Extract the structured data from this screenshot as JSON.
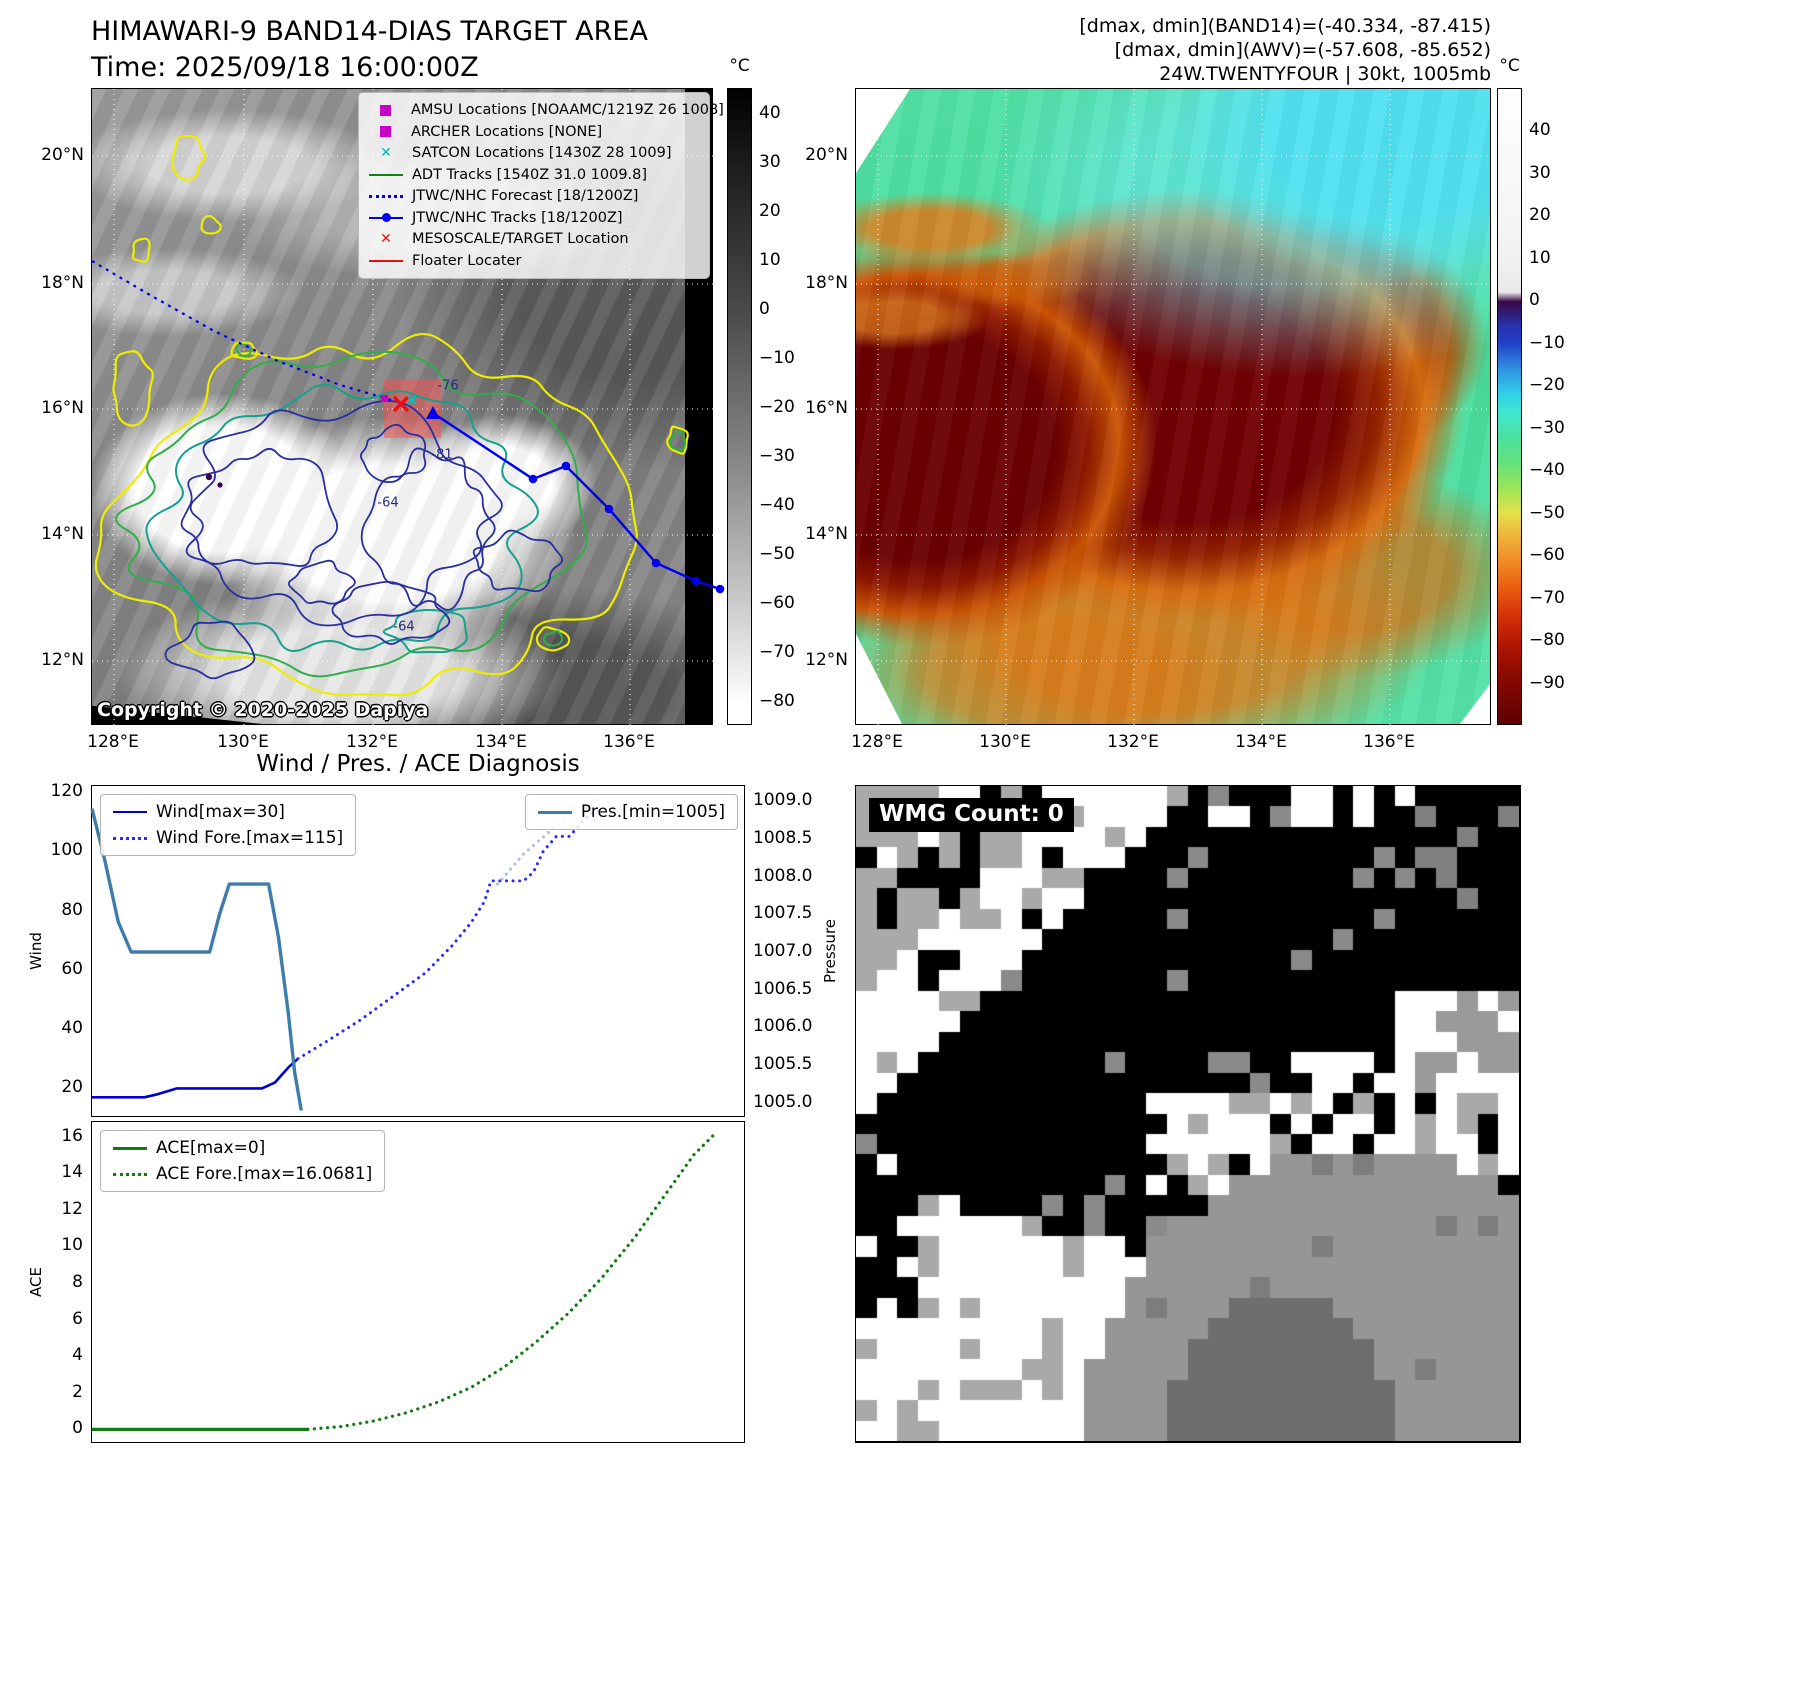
{
  "header": {
    "title": "HIMAWARI-9 BAND14-DIAS TARGET AREA",
    "time_line": "Time: 2025/09/18 16:00:00Z",
    "info_line1": "[dmax, dmin](BAND14)=(-40.334, -87.415)",
    "info_line2": "[dmax, dmin](AWV)=(-57.608, -85.652)",
    "info_line3": "24W.TWENTYFOUR | 30kt, 1005mb"
  },
  "band14_panel": {
    "legend_items": [
      {
        "label": "AMSU Locations [NOAAMC/1219Z 26 1008]",
        "marker": "square",
        "color": "#c800c8"
      },
      {
        "label": "ARCHER Locations [NONE]",
        "marker": "square",
        "color": "#c800c8"
      },
      {
        "label": "SATCON Locations [1430Z 28 1009]",
        "marker": "x",
        "color": "#00bcbc"
      },
      {
        "label": "ADT Tracks [1540Z 31.0 1009.8]",
        "marker": "line",
        "color": "#128012"
      },
      {
        "label": "JTWC/NHC Forecast [18/1200Z]",
        "marker": "dotted",
        "color": "#0000ee"
      },
      {
        "label": "JTWC/NHC Tracks [18/1200Z]",
        "marker": "line-dot",
        "color": "#0000ee"
      },
      {
        "label": "MESOSCALE/TARGET Location",
        "marker": "x",
        "color": "#e81010"
      },
      {
        "label": "Floater Locater",
        "marker": "line",
        "color": "#e81010"
      }
    ],
    "contour_labels": [
      "-76",
      "-81",
      "-64",
      "-64"
    ],
    "copyright": "Copyright © 2020-2025 Dapiya",
    "x_ticks": [
      "128°E",
      "130°E",
      "132°E",
      "134°E",
      "136°E"
    ],
    "y_ticks": [
      "20°N",
      "18°N",
      "16°N",
      "14°N",
      "12°N"
    ],
    "colorbar": {
      "unit": "°C",
      "ticks": [
        40,
        30,
        20,
        10,
        0,
        -10,
        -20,
        -30,
        -40,
        -50,
        -60,
        -70,
        -80
      ]
    }
  },
  "awv_panel": {
    "x_ticks": [
      "128°E",
      "130°E",
      "132°E",
      "134°E",
      "136°E"
    ],
    "y_ticks": [
      "20°N",
      "18°N",
      "16°N",
      "14°N",
      "12°N"
    ],
    "colorbar": {
      "unit": "°C",
      "ticks": [
        40,
        30,
        20,
        10,
        0,
        -10,
        -20,
        -30,
        -40,
        -50,
        -60,
        -70,
        -80,
        -90
      ]
    }
  },
  "diagnosis": {
    "title": "Wind / Pres. / ACE Diagnosis",
    "wind_legend": [
      {
        "label": "Wind[max=30]",
        "marker": "line",
        "color": "#0000cd"
      },
      {
        "label": "Wind Fore.[max=115]",
        "marker": "dotted",
        "color": "#2a2aff"
      }
    ],
    "pres_legend": [
      {
        "label": "Pres.[min=1005]",
        "marker": "thickline",
        "color": "#3e7daa"
      }
    ],
    "ace_legend": [
      {
        "label": "ACE[max=0]",
        "marker": "thickline",
        "color": "#0e7d0e"
      },
      {
        "label": "ACE Fore.[max=16.0681]",
        "marker": "dotted-thick",
        "color": "#0e7d0e"
      }
    ]
  },
  "wmg_panel": {
    "count_label": "WMG Count: 0"
  },
  "chart_data": [
    {
      "type": "line",
      "title": "Wind / Pres. / ACE Diagnosis",
      "subplot": "wind-pressure",
      "x_range": [
        0,
        100
      ],
      "x_ticks": [],
      "left_axis": {
        "label": "Wind",
        "range": [
          10,
          122
        ],
        "ticks": [
          20,
          40,
          60,
          80,
          100,
          120
        ]
      },
      "right_axis": {
        "label": "Pressure",
        "range": [
          1004.8,
          1009.2
        ],
        "decimals": 1,
        "ticks": [
          1005.0,
          1005.5,
          1006.0,
          1006.5,
          1007.0,
          1007.5,
          1008.0,
          1008.5,
          1009.0
        ]
      },
      "legend_entries": [
        "Wind[max=30]",
        "Wind Fore.[max=115]",
        "Pres.[min=1005]"
      ],
      "series": [
        {
          "name": "Wind[max=30]",
          "axis": "left",
          "style": "solid",
          "color": "#0000cd",
          "width": 2.6,
          "x": [
            0,
            8,
            10,
            13,
            26,
            28,
            30,
            31.5
          ],
          "y": [
            17,
            17,
            18,
            20,
            20,
            22,
            27,
            30
          ]
        },
        {
          "name": "Wind Fore.[max=115]",
          "axis": "left",
          "style": "dotted",
          "color": "#2a2aff",
          "width": 3,
          "x": [
            31.5,
            36,
            41,
            46,
            51,
            55,
            58,
            60,
            61,
            66,
            67.5,
            69,
            71,
            73,
            75,
            77.5
          ],
          "y": [
            30,
            36,
            43,
            51,
            59,
            68,
            76,
            83,
            90,
            90,
            93,
            100,
            105,
            105,
            110,
            115
          ]
        },
        {
          "name": "Pres.[min=1005]",
          "axis": "right",
          "style": "solid",
          "color": "#3e7daa",
          "width": 3.4,
          "x": [
            0,
            2,
            4,
            6,
            18,
            19.5,
            21,
            27,
            28.5,
            30,
            31,
            32
          ],
          "y": [
            1008.9,
            1008.2,
            1007.4,
            1007.0,
            1007.0,
            1007.5,
            1007.9,
            1007.9,
            1007.2,
            1006.2,
            1005.4,
            1004.9
          ]
        },
        {
          "name": "Pres. Fore.",
          "axis": "right",
          "style": "dotted",
          "color": "#b0b8f0",
          "width": 3,
          "x": [
            62,
            66,
            70,
            74,
            78
          ],
          "y": [
            1007.9,
            1008.3,
            1008.6,
            1008.9,
            1009.05
          ]
        }
      ]
    },
    {
      "type": "line",
      "subplot": "ace",
      "x_range": [
        0,
        100
      ],
      "x_ticks": [],
      "left_axis": {
        "label": "ACE",
        "range": [
          -0.8,
          16.8
        ],
        "ticks": [
          0,
          2,
          4,
          6,
          8,
          10,
          12,
          14,
          16
        ]
      },
      "legend_entries": [
        "ACE[max=0]",
        "ACE Fore.[max=16.0681]"
      ],
      "series": [
        {
          "name": "ACE[max=0]",
          "axis": "left",
          "style": "solid",
          "color": "#0e7d0e",
          "width": 3.2,
          "x": [
            0,
            33
          ],
          "y": [
            0,
            0
          ]
        },
        {
          "name": "ACE Fore.[max=16.0681]",
          "axis": "left",
          "style": "dotted",
          "color": "#0e7d0e",
          "width": 3.2,
          "x": [
            33,
            38,
            43,
            48,
            53,
            58,
            63,
            68,
            73,
            78,
            83,
            88,
            92,
            95
          ],
          "y": [
            0,
            0.15,
            0.45,
            0.9,
            1.5,
            2.3,
            3.4,
            4.8,
            6.4,
            8.3,
            10.5,
            13,
            15,
            16.07
          ]
        }
      ]
    }
  ]
}
